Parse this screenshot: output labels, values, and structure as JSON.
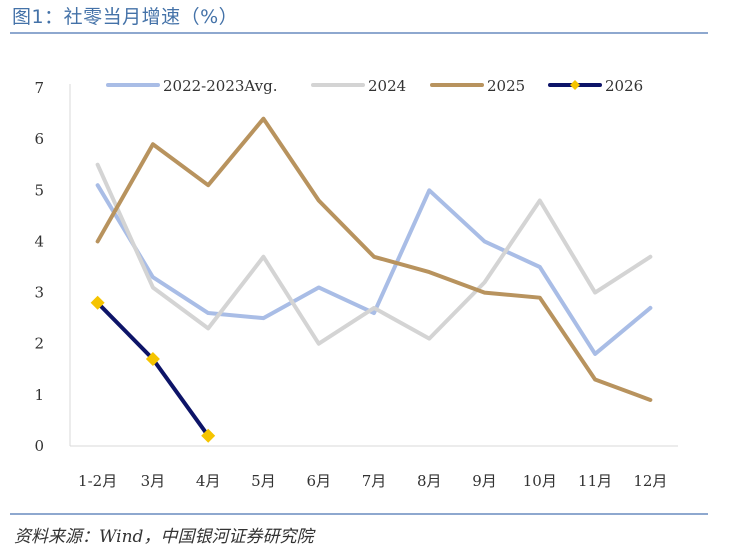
{
  "figure": {
    "title": "图1：社零当月增速（%）",
    "source": "资料来源：Wind，中国银河证券研究院"
  },
  "chart_data": {
    "type": "line",
    "categories": [
      "1-2月",
      "3月",
      "4月",
      "5月",
      "6月",
      "7月",
      "8月",
      "9月",
      "10月",
      "11月",
      "12月"
    ],
    "ylim": [
      0,
      7
    ],
    "yticks": [
      0,
      1,
      2,
      3,
      4,
      5,
      6,
      7
    ],
    "grid": false,
    "legend_position": "top",
    "series": [
      {
        "name": "2022-2023Avg.",
        "color": "#a9bde6",
        "marker": "none",
        "values": [
          5.1,
          3.3,
          2.6,
          2.5,
          3.1,
          2.6,
          5.0,
          4.0,
          3.5,
          1.8,
          2.7
        ]
      },
      {
        "name": "2024",
        "color": "#d4d4d4",
        "marker": "none",
        "values": [
          5.5,
          3.1,
          2.3,
          3.7,
          2.0,
          2.7,
          2.1,
          3.2,
          4.8,
          3.0,
          3.7
        ]
      },
      {
        "name": "2025",
        "color": "#b8935e",
        "marker": "none",
        "values": [
          4.0,
          5.9,
          5.1,
          6.4,
          4.8,
          3.7,
          3.4,
          3.0,
          2.9,
          1.3,
          0.9
        ]
      },
      {
        "name": "2026",
        "color": "#0d1468",
        "marker": "diamond",
        "marker_color": "#f5c400",
        "values": [
          2.8,
          1.7,
          0.2,
          null,
          null,
          null,
          null,
          null,
          null,
          null,
          null
        ]
      }
    ]
  }
}
